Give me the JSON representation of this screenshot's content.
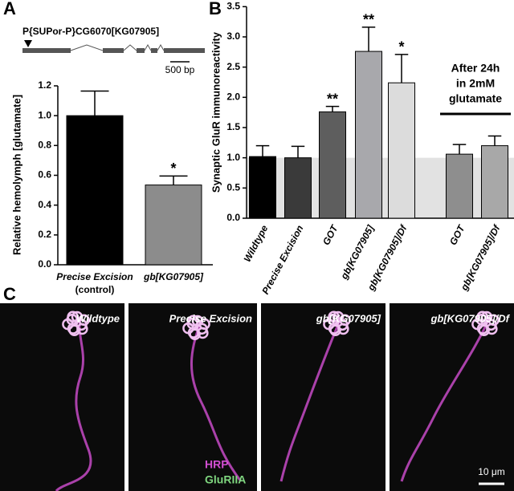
{
  "panel_labels": [
    "A",
    "B",
    "C"
  ],
  "gene": {
    "name": "P{SUPor-P}CG6070[KG07905]",
    "scale_bar": "500 bp"
  },
  "chart_data": [
    {
      "type": "bar",
      "ylabel": "Relative hemolymph [glutamate]",
      "categories": [
        "Precise Excision",
        "gb[KG07905]"
      ],
      "category_notes": [
        "(control)",
        null
      ],
      "values": [
        1.0,
        0.535
      ],
      "errors": [
        0.165,
        0.06
      ],
      "colors": [
        "#000000",
        "#8c8c8c"
      ],
      "stars": [
        null,
        "*"
      ],
      "ylim": [
        0,
        1.2
      ],
      "yticks": [
        {
          "value": 0,
          "label": "0.0"
        },
        {
          "value": 0.2,
          "label": "0.2"
        },
        {
          "value": 0.4,
          "label": "0.4"
        },
        {
          "value": 0.6,
          "label": "0.6"
        },
        {
          "value": 0.8,
          "label": "0.8"
        },
        {
          "value": 1.0,
          "label": "1.0"
        },
        {
          "value": 1.2,
          "label": "1.2"
        }
      ]
    },
    {
      "type": "bar",
      "ylabel": "Synaptic GluR immunoreactivity",
      "categories": [
        "Wildtype",
        "Precise Excision",
        "GOT",
        "gb[KG07905]",
        "gb[KG07905]/Df",
        "GOT",
        "gb[KG07905]/Df"
      ],
      "values": [
        1.02,
        1.0,
        1.76,
        2.76,
        2.24,
        1.06,
        1.2
      ],
      "errors": [
        0.18,
        0.19,
        0.09,
        0.4,
        0.47,
        0.16,
        0.16
      ],
      "colors": [
        "#000000",
        "#3a3a3a",
        "#5e5e5e",
        "#a8a8ac",
        "#dcdcdc",
        "#8e8e8e",
        "#a8a8a8"
      ],
      "stars": [
        null,
        null,
        "**",
        "**",
        "*",
        null,
        null
      ],
      "band": {
        "from": 0,
        "to": 1,
        "color": "#e2e2e2"
      },
      "annotation": [
        "After 24h",
        "in 2mM",
        "glutamate"
      ],
      "ylim": [
        0,
        3.5
      ],
      "yticks": [
        {
          "value": 0,
          "label": "0.0"
        },
        {
          "value": 0.5,
          "label": "0.5"
        },
        {
          "value": 1.0,
          "label": "1.0"
        },
        {
          "value": 1.5,
          "label": "1.5"
        },
        {
          "value": 2.0,
          "label": "2.0"
        },
        {
          "value": 2.5,
          "label": "2.5"
        },
        {
          "value": 3.0,
          "label": "3.0"
        },
        {
          "value": 3.5,
          "label": "3.5"
        }
      ]
    }
  ],
  "micrographs": {
    "titles": [
      "Wildtype",
      "Precise Excision",
      "gb[KG07905]",
      "gb[KG07905]/Df"
    ],
    "channels": [
      {
        "text": "HRP",
        "color": "#d24fd2"
      },
      {
        "text": "GluRIIA",
        "color": "#7fd67f"
      }
    ],
    "scale_bar": "10 μm"
  }
}
